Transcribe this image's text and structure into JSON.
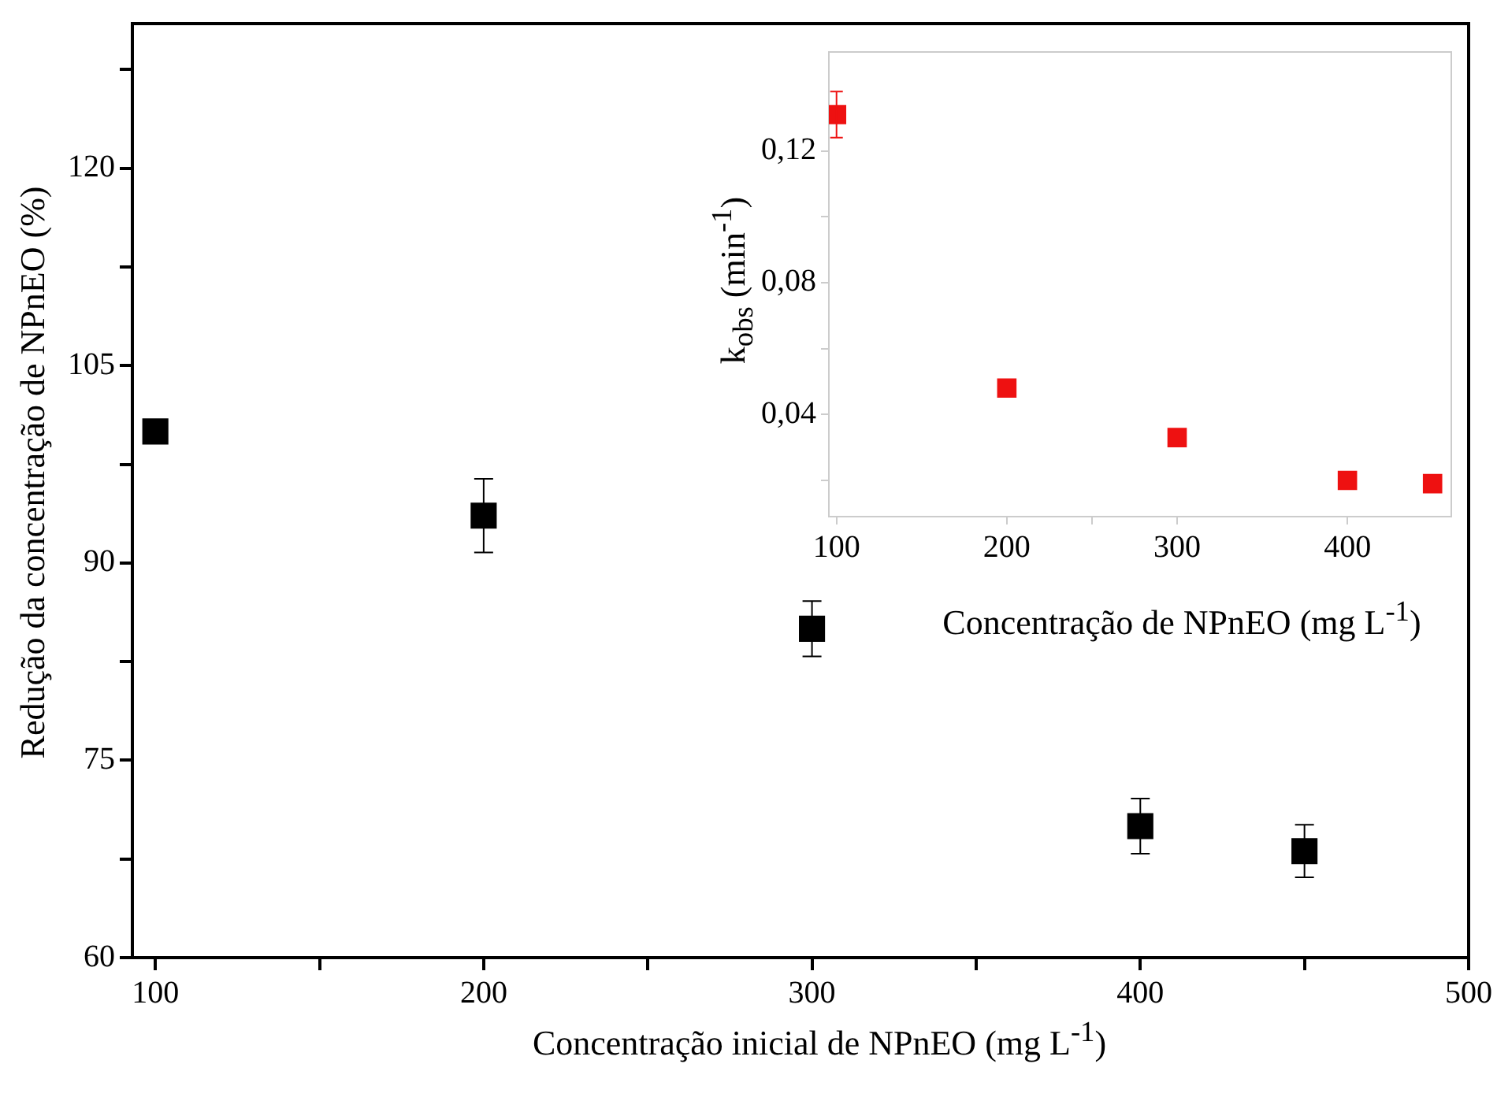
{
  "chart_data": [
    {
      "type": "scatter",
      "xlabel": "Concentração inicial de NPnEO (mg L$^{-1}$)",
      "ylabel": "Redução da concentração de NPnEO (%)",
      "x": [
        100,
        200,
        300,
        400,
        450
      ],
      "marker": "square",
      "series": [
        {
          "color": "#000000",
          "values": [
            100,
            93.6,
            85,
            70,
            68.1
          ],
          "errors": [
            null,
            2.8,
            2.1,
            2.1,
            2
          ]
        }
      ],
      "xlim": [
        93,
        500
      ],
      "xticks": [
        100,
        {
          "value": 150,
          "label": null
        },
        200,
        {
          "value": 250,
          "label": null
        },
        300,
        {
          "value": 350,
          "label": null
        },
        400,
        {
          "value": 450,
          "label": null
        },
        500
      ],
      "ylim": [
        60,
        131
      ],
      "yticks": [
        60,
        {
          "value": 67.5,
          "label": null
        },
        75,
        {
          "value": 82.5,
          "label": null
        },
        90,
        {
          "value": 97.5,
          "label": null
        },
        105,
        {
          "value": 112.5,
          "label": null
        },
        120,
        {
          "value": 127.5,
          "label": null
        }
      ]
    },
    {
      "type": "scatter",
      "xlabel": "Concentração de NPnEO (mg L$^{-1}$)",
      "ylabel": "k$_{obs}$ (min$^{-1}$)",
      "x": [
        100,
        200,
        300,
        400,
        450
      ],
      "marker": "square",
      "series": [
        {
          "color": "#ee1111",
          "values": [
            0.131,
            0.048,
            0.033,
            0.02,
            0.019
          ],
          "errors": [
            0.007,
            null,
            null,
            null,
            null
          ]
        }
      ],
      "xlim": [
        95.5,
        461
      ],
      "xticks": [
        100,
        200,
        {
          "value": 250,
          "label": null
        },
        300,
        400
      ],
      "ylim": [
        0.009,
        0.15
      ],
      "yticks": [
        {
          "value": 0.02,
          "label": null
        },
        {
          "value": 0.04,
          "label": "0,04"
        },
        {
          "value": 0.06,
          "label": null
        },
        {
          "value": 0.08,
          "label": "0,08"
        },
        {
          "value": 0.1,
          "label": null
        },
        {
          "value": 0.12,
          "label": "0,12"
        }
      ]
    }
  ]
}
